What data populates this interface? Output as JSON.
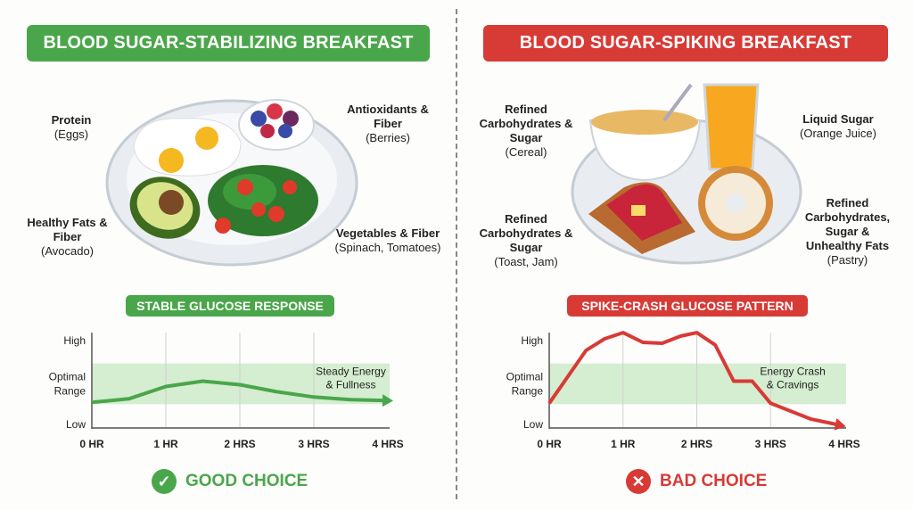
{
  "left": {
    "title": "BLOOD SUGAR-STABILIZING BREAKFAST",
    "labels": [
      {
        "bold": "Protein",
        "sub": "(Eggs)"
      },
      {
        "bold": "Antioxidants & Fiber",
        "sub": "(Berries)"
      },
      {
        "bold": "Healthy Fats & Fiber",
        "sub": "(Avocado)"
      },
      {
        "bold": "Vegetables & Fiber",
        "sub": "(Spinach, Tomatoes)"
      }
    ],
    "chart_title": "STABLE GLUCOSE RESPONSE",
    "verdict": "GOOD CHOICE",
    "verdict_icon": "check-circle-icon"
  },
  "right": {
    "title": "BLOOD SUGAR-SPIKING BREAKFAST",
    "labels": [
      {
        "bold": "Refined Carbohydrates & Sugar",
        "sub": "(Cereal)"
      },
      {
        "bold": "Liquid Sugar",
        "sub": "(Orange Juice)"
      },
      {
        "bold": "Refined Carbohydrates & Sugar",
        "sub": "(Toast, Jam)"
      },
      {
        "bold": "Refined Carbohydrates, Sugar & Unhealthy Fats",
        "sub": "(Pastry)"
      }
    ],
    "chart_title": "SPIKE-CRASH GLUCOSE PATTERN",
    "verdict": "BAD CHOICE",
    "verdict_icon": "x-circle-icon"
  },
  "colors": {
    "good": "#4aa64a",
    "bad": "#d83a36",
    "optimal_band": "#d5edd0"
  },
  "chart_data": [
    {
      "type": "line",
      "title": "STABLE GLUCOSE RESPONSE",
      "x_ticks": [
        "0 HR",
        "1 HR",
        "2 HRS",
        "3 HRS",
        "4 HRS"
      ],
      "y_ticks": [
        "High",
        "Optimal Range",
        "Low"
      ],
      "xlim": [
        0,
        4
      ],
      "ylim": [
        0,
        1
      ],
      "grid": "vertical",
      "optimal_band": [
        0.27,
        0.73
      ],
      "x": [
        0,
        0.5,
        1,
        1.5,
        2,
        2.5,
        3,
        3.5,
        4
      ],
      "y": [
        0.29,
        0.33,
        0.47,
        0.53,
        0.49,
        0.41,
        0.35,
        0.32,
        0.31
      ],
      "annotation": "Steady Energy & Fullness",
      "color": "#4aa64a"
    },
    {
      "type": "line",
      "title": "SPIKE-CRASH GLUCOSE PATTERN",
      "x_ticks": [
        "0 HR",
        "1 HR",
        "2 HRS",
        "3 HRS",
        "4 HRS"
      ],
      "y_ticks": [
        "High",
        "Optimal Range",
        "Low"
      ],
      "xlim": [
        0,
        4
      ],
      "ylim": [
        0,
        1
      ],
      "grid": "vertical",
      "optimal_band": [
        0.27,
        0.73
      ],
      "x": [
        0,
        0.5,
        0.75,
        1,
        1.27,
        1.53,
        1.78,
        2,
        2.25,
        2.5,
        2.75,
        3,
        3.55,
        3.95
      ],
      "y": [
        0.28,
        0.88,
        1.01,
        1.08,
        0.97,
        0.96,
        1.04,
        1.08,
        0.94,
        0.53,
        0.53,
        0.28,
        0.1,
        0.03
      ],
      "annotation": "Energy Crash & Cravings",
      "color": "#d83a36"
    }
  ]
}
